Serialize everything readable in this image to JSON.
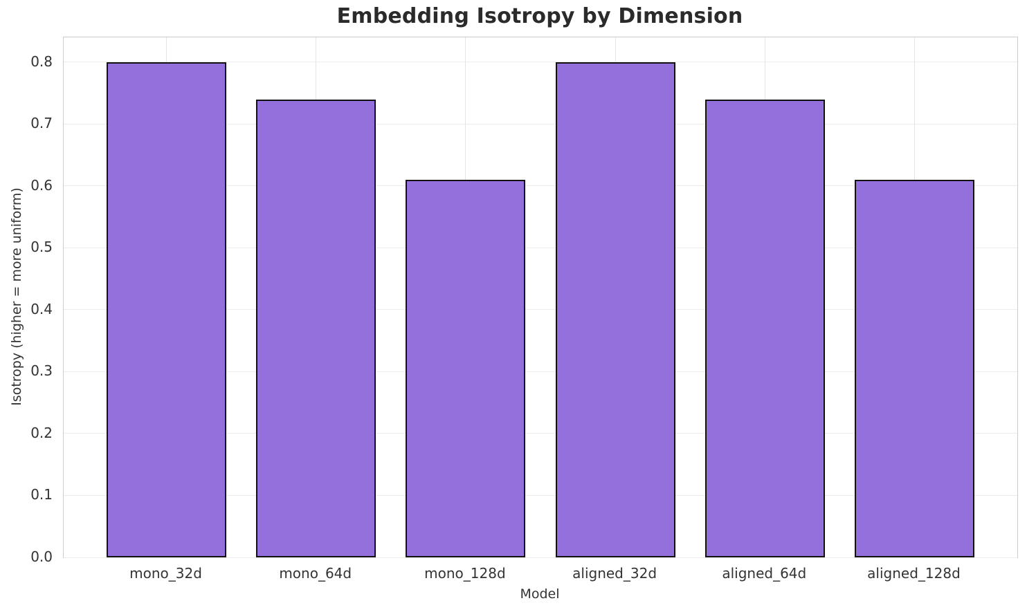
{
  "chart_data": {
    "type": "bar",
    "title": "Embedding Isotropy by Dimension",
    "xlabel": "Model",
    "ylabel": "Isotropy (higher = more uniform)",
    "categories": [
      "mono_32d",
      "mono_64d",
      "mono_128d",
      "aligned_32d",
      "aligned_64d",
      "aligned_128d"
    ],
    "values": [
      0.8,
      0.74,
      0.61,
      0.8,
      0.74,
      0.61
    ],
    "ylim": [
      0.0,
      0.84
    ],
    "yticks": [
      0.0,
      0.1,
      0.2,
      0.3,
      0.4,
      0.5,
      0.6,
      0.7,
      0.8
    ],
    "bar_width_fraction": 0.8,
    "x_margin": 0.687,
    "grid": true,
    "legend_position": "none",
    "colors": {
      "bar_fill": "#9370DB",
      "bar_edge": "#111111",
      "gridline": "#ECECEC",
      "spine": "#CCCCCC",
      "title_text": "#2B2B2B",
      "tick_text": "#333333",
      "background": "#FFFFFF"
    }
  }
}
